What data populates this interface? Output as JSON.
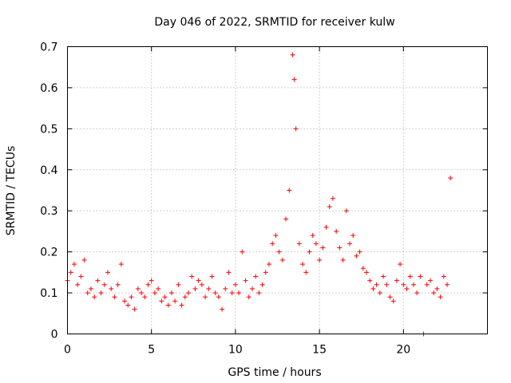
{
  "chart_data": {
    "type": "scatter",
    "title": "Day 046 of 2022, SRMTID for receiver kulw",
    "xlabel": "GPS time / hours",
    "ylabel": "SRMTID / TECUs",
    "xlim": [
      0,
      25
    ],
    "ylim": [
      0,
      0.7
    ],
    "xticks": [
      0,
      5,
      10,
      15,
      20
    ],
    "xtick_labels": [
      "0",
      "5",
      "10",
      "15",
      "20"
    ],
    "yticks": [
      0,
      0.1,
      0.2,
      0.3,
      0.4,
      0.5,
      0.6,
      0.7
    ],
    "ytick_labels": [
      "0",
      "0.1",
      "0.2",
      "0.3",
      "0.4",
      "0.5",
      "0.6",
      "0.7"
    ],
    "grid": true,
    "marker": "+",
    "color": "#ff0000",
    "series": [
      {
        "name": "SRMTID",
        "x": [
          0.0,
          0.2,
          0.4,
          0.6,
          0.8,
          1.0,
          1.2,
          1.4,
          1.6,
          1.8,
          2.0,
          2.2,
          2.4,
          2.6,
          2.8,
          3.0,
          3.2,
          3.4,
          3.6,
          3.8,
          4.0,
          4.2,
          4.4,
          4.6,
          4.8,
          5.0,
          5.2,
          5.4,
          5.6,
          5.8,
          6.0,
          6.2,
          6.4,
          6.6,
          6.8,
          7.0,
          7.2,
          7.4,
          7.6,
          7.8,
          8.0,
          8.2,
          8.4,
          8.6,
          8.8,
          9.0,
          9.2,
          9.4,
          9.6,
          9.8,
          10.0,
          10.2,
          10.4,
          10.6,
          10.8,
          11.0,
          11.2,
          11.4,
          11.6,
          11.8,
          12.0,
          12.2,
          12.4,
          12.6,
          12.8,
          13.0,
          13.2,
          13.4,
          13.5,
          13.6,
          13.8,
          14.0,
          14.2,
          14.4,
          14.6,
          14.8,
          15.0,
          15.2,
          15.4,
          15.6,
          15.8,
          16.0,
          16.2,
          16.4,
          16.6,
          16.8,
          17.0,
          17.2,
          17.4,
          17.6,
          17.8,
          18.0,
          18.2,
          18.4,
          18.6,
          18.8,
          19.0,
          19.2,
          19.4,
          19.6,
          19.8,
          20.0,
          20.2,
          20.4,
          20.6,
          20.8,
          21.0,
          21.2,
          21.4,
          21.6,
          21.8,
          22.0,
          22.2,
          22.4,
          22.6,
          22.8
        ],
        "y": [
          0.13,
          0.15,
          0.17,
          0.12,
          0.14,
          0.18,
          0.1,
          0.11,
          0.09,
          0.13,
          0.1,
          0.12,
          0.15,
          0.11,
          0.09,
          0.12,
          0.17,
          0.08,
          0.07,
          0.09,
          0.06,
          0.11,
          0.1,
          0.09,
          0.12,
          0.13,
          0.1,
          0.11,
          0.08,
          0.09,
          0.07,
          0.1,
          0.08,
          0.12,
          0.07,
          0.09,
          0.1,
          0.14,
          0.11,
          0.13,
          0.12,
          0.09,
          0.11,
          0.14,
          0.1,
          0.09,
          0.06,
          0.11,
          0.15,
          0.1,
          0.12,
          0.1,
          0.2,
          0.13,
          0.09,
          0.11,
          0.14,
          0.1,
          0.12,
          0.15,
          0.17,
          0.22,
          0.24,
          0.2,
          0.18,
          0.28,
          0.35,
          0.68,
          0.62,
          0.5,
          0.22,
          0.17,
          0.15,
          0.2,
          0.24,
          0.22,
          0.18,
          0.21,
          0.26,
          0.31,
          0.33,
          0.25,
          0.21,
          0.18,
          0.3,
          0.22,
          0.24,
          0.19,
          0.2,
          0.16,
          0.15,
          0.13,
          0.11,
          0.12,
          0.1,
          0.14,
          0.12,
          0.09,
          0.08,
          0.13,
          0.17,
          0.12,
          0.11,
          0.14,
          0.12,
          0.1,
          0.14,
          0.0,
          0.12,
          0.13,
          0.1,
          0.11,
          0.09,
          0.14,
          0.12,
          0.38
        ]
      }
    ]
  }
}
